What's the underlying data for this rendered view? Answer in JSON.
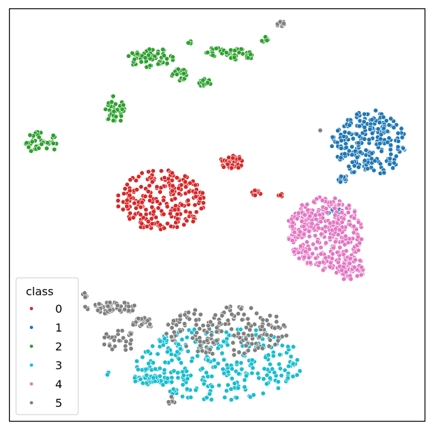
{
  "chart_data": {
    "type": "scatter",
    "title": "",
    "xlabel": "",
    "ylabel": "",
    "xlim": [
      0,
      100
    ],
    "ylim": [
      0,
      100
    ],
    "grid": false,
    "ticks": false,
    "legend": {
      "title": "class",
      "placement": "bottom-left",
      "entries": [
        {
          "label": "0",
          "color": "#d62728"
        },
        {
          "label": "1",
          "color": "#1f77b4"
        },
        {
          "label": "2",
          "color": "#2ca02c"
        },
        {
          "label": "3",
          "color": "#17becf"
        },
        {
          "label": "4",
          "color": "#e377c2"
        },
        {
          "label": "5",
          "color": "#7f7f7f"
        }
      ]
    },
    "series": [
      {
        "name": "0",
        "color": "#d62728",
        "clusters": [
          {
            "cx": 36.5,
            "cy": 53.5,
            "rx": 10.5,
            "ry": 7.5,
            "n": 240
          },
          {
            "cx": 53.5,
            "cy": 62.8,
            "rx": 3.0,
            "ry": 1.6,
            "n": 45
          },
          {
            "cx": 59.5,
            "cy": 55.2,
            "rx": 1.3,
            "ry": 0.8,
            "n": 10
          },
          {
            "cx": 65.5,
            "cy": 54.8,
            "rx": 0.8,
            "ry": 0.6,
            "n": 4
          }
        ]
      },
      {
        "name": "1",
        "color": "#1f77b4",
        "clusters": [
          {
            "cx": 86.5,
            "cy": 67.5,
            "rx": 9.0,
            "ry": 8.0,
            "n": 230
          },
          {
            "cx": 80.2,
            "cy": 58.5,
            "rx": 1.2,
            "ry": 1.5,
            "n": 12
          },
          {
            "cx": 77.5,
            "cy": 51.0,
            "rx": 2.5,
            "ry": 1.0,
            "n": 14
          }
        ]
      },
      {
        "name": "2",
        "color": "#2ca02c",
        "clusters": [
          {
            "cx": 7.5,
            "cy": 67.5,
            "rx": 4.0,
            "ry": 3.0,
            "n": 45
          },
          {
            "cx": 25.5,
            "cy": 75.5,
            "rx": 2.5,
            "ry": 3.5,
            "n": 40
          },
          {
            "cx": 34.0,
            "cy": 88.0,
            "rx": 5.5,
            "ry": 2.5,
            "n": 60
          },
          {
            "cx": 41.0,
            "cy": 84.0,
            "rx": 2.0,
            "ry": 1.5,
            "n": 25
          },
          {
            "cx": 47.0,
            "cy": 82.0,
            "rx": 1.5,
            "ry": 1.0,
            "n": 20
          },
          {
            "cx": 49.5,
            "cy": 89.5,
            "rx": 2.5,
            "ry": 1.0,
            "n": 20
          },
          {
            "cx": 55.5,
            "cy": 89.0,
            "rx": 3.5,
            "ry": 1.5,
            "n": 40
          },
          {
            "cx": 43.5,
            "cy": 92.0,
            "rx": 1.0,
            "ry": 0.5,
            "n": 8
          },
          {
            "cx": 61.5,
            "cy": 92.5,
            "rx": 1.0,
            "ry": 0.7,
            "n": 8
          }
        ]
      },
      {
        "name": "3",
        "color": "#17becf",
        "clusters": [
          {
            "cx": 50.5,
            "cy": 14.0,
            "rx": 20.0,
            "ry": 9.0,
            "n": 300
          },
          {
            "cx": 34.0,
            "cy": 10.0,
            "rx": 5.5,
            "ry": 1.2,
            "n": 40
          },
          {
            "cx": 24.0,
            "cy": 11.5,
            "rx": 0.5,
            "ry": 0.5,
            "n": 2
          }
        ]
      },
      {
        "name": "4",
        "color": "#e377c2",
        "clusters": [
          {
            "cx": 76.0,
            "cy": 45.5,
            "rx": 9.0,
            "ry": 9.0,
            "n": 330
          },
          {
            "cx": 70.0,
            "cy": 48.0,
            "rx": 3.0,
            "ry": 3.0,
            "n": 60
          },
          {
            "cx": 82.0,
            "cy": 37.0,
            "rx": 3.5,
            "ry": 3.0,
            "n": 70
          }
        ]
      },
      {
        "name": "5",
        "color": "#7f7f7f",
        "clusters": [
          {
            "cx": 24.5,
            "cy": 27.5,
            "rx": 6.5,
            "ry": 1.5,
            "n": 60
          },
          {
            "cx": 18.0,
            "cy": 30.5,
            "rx": 0.6,
            "ry": 0.6,
            "n": 5
          },
          {
            "cx": 32.5,
            "cy": 24.0,
            "rx": 3.5,
            "ry": 1.2,
            "n": 25
          },
          {
            "cx": 26.5,
            "cy": 19.5,
            "rx": 4.5,
            "ry": 2.5,
            "n": 30
          },
          {
            "cx": 52.0,
            "cy": 22.0,
            "rx": 15.0,
            "ry": 6.0,
            "n": 180
          },
          {
            "cx": 65.5,
            "cy": 96.2,
            "rx": 1.2,
            "ry": 0.8,
            "n": 10
          },
          {
            "cx": 74.5,
            "cy": 70.5,
            "rx": 0.3,
            "ry": 0.3,
            "n": 1
          },
          {
            "cx": 39.0,
            "cy": 5.0,
            "rx": 1.0,
            "ry": 1.0,
            "n": 6
          }
        ]
      }
    ]
  }
}
